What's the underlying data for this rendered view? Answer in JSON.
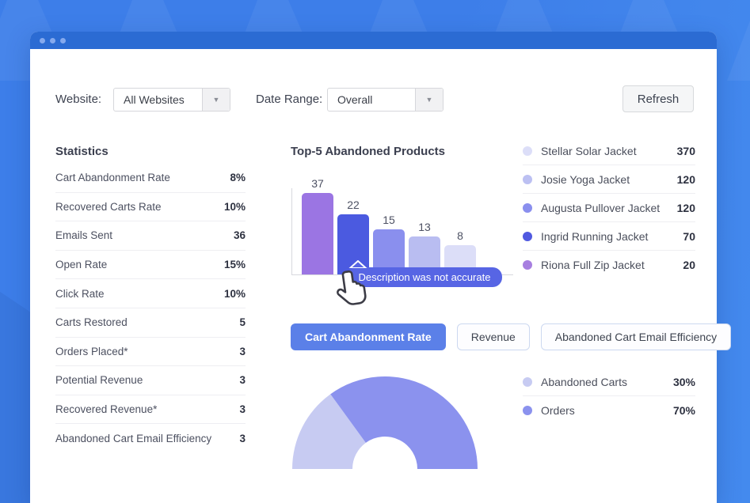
{
  "header": {
    "website_label": "Website:",
    "website_value": "All Websites",
    "date_range_label": "Date Range:",
    "date_range_value": "Overall",
    "refresh_label": "Refresh"
  },
  "statistics": {
    "title": "Statistics",
    "items": [
      {
        "label": "Cart Abandonment Rate",
        "value": "8%"
      },
      {
        "label": "Recovered Carts Rate",
        "value": "10%"
      },
      {
        "label": "Emails Sent",
        "value": "36"
      },
      {
        "label": "Open Rate",
        "value": "15%"
      },
      {
        "label": "Click Rate",
        "value": "10%"
      },
      {
        "label": "Carts Restored",
        "value": "5"
      },
      {
        "label": "Orders Placed*",
        "value": "3"
      },
      {
        "label": "Potential Revenue",
        "value": "3"
      },
      {
        "label": "Recovered Revenue*",
        "value": "3"
      },
      {
        "label": "Abandoned Cart Email Efficiency",
        "value": "3"
      }
    ]
  },
  "tooltip": {
    "text": "Description was not accurate"
  },
  "tabs": {
    "items": [
      {
        "label": "Cart Abandonment Rate",
        "active": true
      },
      {
        "label": "Revenue",
        "active": false
      },
      {
        "label": "Abandoned Cart Email Efficiency",
        "active": false
      }
    ]
  },
  "chart_data": [
    {
      "type": "bar",
      "title": "Top-5 Abandoned Products",
      "categories": [
        "",
        "",
        "",
        "",
        ""
      ],
      "values": [
        37,
        22,
        15,
        13,
        8
      ],
      "bar_colors": [
        "#9b75e3",
        "#4b5ae0",
        "#8a8fee",
        "#b9bdf1",
        "#dcdef8"
      ],
      "grid": false,
      "ylim": [
        0,
        40
      ],
      "legend": {
        "position": "right",
        "items": [
          {
            "label": "Stellar Solar Jacket",
            "value": 370,
            "color": "#dcdef8"
          },
          {
            "label": "Josie Yoga Jacket",
            "value": 120,
            "color": "#bcc0f2"
          },
          {
            "label": "Augusta Pullover Jacket",
            "value": 120,
            "color": "#8a8fee"
          },
          {
            "label": "Ingrid Running Jacket",
            "value": 70,
            "color": "#5059e0"
          },
          {
            "label": "Riona Full Zip Jacket",
            "value": 20,
            "color": "#a77fe0"
          }
        ]
      }
    },
    {
      "type": "pie",
      "subtype": "half-donut",
      "legend_position": "right",
      "segments": [
        {
          "label": "Abandoned Carts",
          "value": 30,
          "unit": "%",
          "color": "#c7cbf2"
        },
        {
          "label": "Orders",
          "value": 70,
          "unit": "%",
          "color": "#8b92ee"
        }
      ]
    }
  ]
}
